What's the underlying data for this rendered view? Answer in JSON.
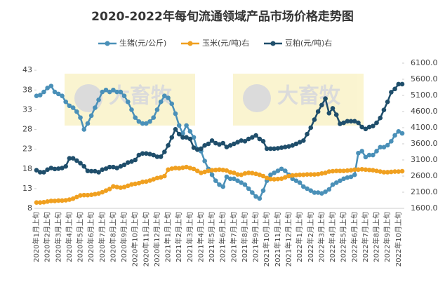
{
  "chart_data": {
    "type": "line",
    "title": "2020-2022年每旬流通领域产品市场价格走势图",
    "watermark": "大畜牧",
    "categories": [
      "2020年1月上旬",
      null,
      null,
      "2020年2月上旬",
      null,
      null,
      "2020年3月上旬",
      null,
      null,
      "2020年4月上旬",
      null,
      null,
      "2020年5月上旬",
      null,
      null,
      "2020年6月上旬",
      null,
      null,
      "2020年7月上旬",
      null,
      null,
      "2020年8月上旬",
      null,
      null,
      "2020年9月上旬",
      null,
      null,
      "2020年10月上旬",
      null,
      null,
      "2020年11月上旬",
      null,
      null,
      "2020年12月上旬",
      null,
      null,
      "2021年1月上旬",
      null,
      null,
      "2021年2月上旬",
      null,
      null,
      "2021年3月上旬",
      null,
      null,
      "2021年4月上旬",
      null,
      null,
      "2021年5月上旬",
      null,
      null,
      "2021年6月上旬",
      null,
      null,
      "2021年7月上旬",
      null,
      null,
      "2021年8月上旬",
      null,
      null,
      "2021年9月上旬",
      null,
      null,
      "2021年10月上旬",
      null,
      null,
      "2021年11月上旬",
      null,
      null,
      "2021年12月上旬",
      null,
      null,
      "2022年1月上旬",
      null,
      null,
      "2022年2月上旬",
      null,
      null,
      "2022年3月上旬",
      null,
      null,
      "2022年4月上旬",
      null,
      null,
      "2022年5月上旬",
      null,
      null,
      "2022年6月上旬",
      null,
      null,
      "2022年7月上旬",
      null,
      null,
      "2022年8月上旬",
      null,
      null,
      "2022年9月上旬",
      null,
      null,
      "2022年10月上旬",
      null
    ],
    "series": [
      {
        "name": "生猪(元/公斤)",
        "color": "#4a90b8",
        "axis": "y",
        "values": [
          36.5,
          36.7,
          37.5,
          38.5,
          39,
          37.5,
          37,
          36.5,
          35,
          34,
          33.5,
          32.5,
          31,
          28,
          29.5,
          31.5,
          33.5,
          35.5,
          37.5,
          38,
          37.5,
          38,
          37.5,
          37.5,
          36.5,
          35,
          33,
          31,
          30,
          29.5,
          29.5,
          30,
          31,
          33,
          35,
          36.5,
          36,
          34.5,
          32,
          29,
          27,
          29,
          27.5,
          26,
          23,
          22.5,
          20,
          18,
          16.5,
          15,
          14,
          13.5,
          16,
          15.5,
          15.5,
          15,
          14.5,
          14,
          13,
          12,
          11,
          10.5,
          12.5,
          15,
          16.5,
          17,
          17.5,
          18,
          17.5,
          16.5,
          15.5,
          15,
          14.5,
          13.5,
          13,
          12.5,
          12,
          12,
          11.8,
          12.2,
          12.8,
          14,
          14.5,
          15,
          15.5,
          15.8,
          16,
          16.5,
          22,
          22.5,
          21,
          21.5,
          21.5,
          22.5,
          23.5,
          23.5,
          24,
          25,
          26.5,
          27.5,
          27
        ]
      },
      {
        "name": "玉米(元/吨)右",
        "color": "#f0a020",
        "axis": "y2",
        "values": [
          1780,
          1780,
          1790,
          1810,
          1830,
          1830,
          1840,
          1840,
          1850,
          1870,
          1900,
          1950,
          2000,
          2010,
          2010,
          2020,
          2040,
          2060,
          2100,
          2150,
          2200,
          2280,
          2260,
          2240,
          2260,
          2300,
          2340,
          2360,
          2380,
          2420,
          2430,
          2460,
          2500,
          2540,
          2560,
          2600,
          2800,
          2830,
          2850,
          2840,
          2860,
          2880,
          2850,
          2820,
          2760,
          2700,
          2730,
          2760,
          2780,
          2790,
          2800,
          2790,
          2770,
          2720,
          2700,
          2650,
          2640,
          2680,
          2700,
          2690,
          2670,
          2640,
          2600,
          2540,
          2510,
          2500,
          2510,
          2520,
          2560,
          2600,
          2620,
          2630,
          2640,
          2640,
          2650,
          2650,
          2650,
          2660,
          2680,
          2700,
          2740,
          2750,
          2760,
          2760,
          2760,
          2770,
          2780,
          2800,
          2800,
          2810,
          2800,
          2790,
          2780,
          2760,
          2740,
          2720,
          2720,
          2730,
          2740,
          2740,
          2750
        ]
      },
      {
        "name": "豆粕(元/吨)右",
        "color": "#1f4e6b",
        "axis": "y2",
        "values": [
          2780,
          2720,
          2720,
          2800,
          2850,
          2820,
          2830,
          2850,
          2900,
          3150,
          3150,
          3080,
          3000,
          2900,
          2760,
          2750,
          2750,
          2720,
          2800,
          2830,
          2880,
          2880,
          2850,
          2900,
          2950,
          3020,
          3050,
          3100,
          3250,
          3300,
          3300,
          3280,
          3250,
          3200,
          3200,
          3350,
          3550,
          3800,
          4050,
          3900,
          3800,
          3800,
          3750,
          3480,
          3420,
          3450,
          3550,
          3600,
          3700,
          3620,
          3580,
          3620,
          3500,
          3550,
          3600,
          3650,
          3700,
          3680,
          3750,
          3800,
          3860,
          3750,
          3680,
          3450,
          3450,
          3450,
          3460,
          3480,
          3500,
          3520,
          3550,
          3600,
          3650,
          3700,
          3900,
          4100,
          4350,
          4600,
          4800,
          5000,
          4550,
          4700,
          4500,
          4220,
          4250,
          4300,
          4300,
          4300,
          4250,
          4120,
          4060,
          4120,
          4150,
          4250,
          4400,
          4650,
          4900,
          5200,
          5300,
          5450,
          5450
        ]
      }
    ],
    "ylim": [
      8,
      44.8
    ],
    "yticks": [
      8,
      13,
      18,
      23,
      28,
      33,
      38,
      43
    ],
    "y2lim": [
      1600,
      6100
    ],
    "y2ticks": [
      {
        "value": 1600,
        "label": "1600.0"
      },
      {
        "value": 2100,
        "label": "2100.0"
      },
      {
        "value": 2600,
        "label": "2600.0"
      },
      {
        "value": 3100,
        "label": "3100.0"
      },
      {
        "value": 3600,
        "label": "3600.0"
      },
      {
        "value": 4100,
        "label": "4100.0"
      },
      {
        "value": 4600,
        "label": "4600.0"
      },
      {
        "value": 5100,
        "label": "5100.0"
      },
      {
        "value": 5600,
        "label": "5600.0"
      },
      {
        "value": 6100,
        "label": "6100.0"
      }
    ],
    "legend": "top"
  }
}
